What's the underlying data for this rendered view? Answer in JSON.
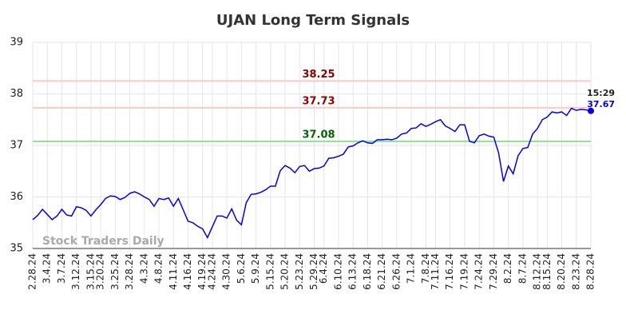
{
  "chart_data": {
    "type": "line",
    "title": "UJAN Long Term Signals",
    "watermark": "Stock Traders Daily",
    "categories": [
      "2.28.24",
      null,
      null,
      "3.4.24",
      null,
      null,
      "3.7.24",
      null,
      null,
      "3.12.24",
      null,
      null,
      "3.15.24",
      null,
      "3.20.24",
      null,
      null,
      "3.25.24",
      null,
      null,
      "3.28.24",
      null,
      null,
      "4.3.24",
      null,
      null,
      "4.8.24",
      null,
      null,
      "4.11.24",
      null,
      null,
      "4.16.24",
      null,
      null,
      "4.19.24",
      null,
      "4.24.24",
      null,
      null,
      "4.30.24",
      null,
      null,
      "5.6.24",
      null,
      null,
      "5.9.24",
      null,
      null,
      "5.15.24",
      null,
      null,
      "5.20.24",
      null,
      null,
      "5.23.24",
      null,
      null,
      "5.29.24",
      null,
      "6.4.24",
      null,
      null,
      "6.10.24",
      null,
      null,
      "6.13.24",
      null,
      null,
      "6.18.24",
      null,
      null,
      "6.21.24",
      null,
      null,
      "6.26.24",
      null,
      null,
      "7.1.24",
      null,
      null,
      "7.8.24",
      null,
      "7.11.24",
      null,
      null,
      "7.16.24",
      null,
      null,
      "7.19.24",
      null,
      null,
      "7.24.24",
      null,
      null,
      "7.29.24",
      null,
      null,
      "8.2.24",
      null,
      null,
      "8.7.24",
      null,
      null,
      "8.12.24",
      null,
      "8.15.24",
      null,
      null,
      "8.20.24",
      null,
      null,
      "8.23.24",
      null,
      null,
      "8.28.24"
    ],
    "values": [
      35.56,
      35.64,
      35.76,
      35.66,
      35.56,
      35.63,
      35.76,
      35.65,
      35.63,
      35.81,
      35.79,
      35.74,
      35.63,
      35.75,
      35.85,
      35.97,
      36.02,
      36.01,
      35.95,
      35.99,
      36.07,
      36.1,
      36.06,
      36.0,
      35.95,
      35.82,
      35.97,
      35.95,
      35.98,
      35.82,
      35.97,
      35.75,
      35.53,
      35.5,
      35.43,
      35.38,
      35.21,
      35.42,
      35.63,
      35.63,
      35.59,
      35.77,
      35.55,
      35.46,
      35.89,
      36.05,
      36.06,
      36.09,
      36.14,
      36.21,
      36.21,
      36.51,
      36.61,
      36.56,
      36.47,
      36.59,
      36.61,
      36.5,
      36.55,
      36.56,
      36.6,
      36.75,
      36.76,
      36.79,
      36.83,
      36.97,
      36.99,
      37.05,
      37.09,
      37.05,
      37.04,
      37.11,
      37.11,
      37.12,
      37.11,
      37.14,
      37.22,
      37.24,
      37.33,
      37.34,
      37.42,
      37.37,
      37.41,
      37.46,
      37.5,
      37.38,
      37.33,
      37.27,
      37.4,
      37.4,
      37.08,
      37.05,
      37.19,
      37.22,
      37.18,
      37.16,
      36.85,
      36.3,
      36.6,
      36.45,
      36.8,
      36.94,
      36.96,
      37.22,
      37.33,
      37.5,
      37.55,
      37.65,
      37.63,
      37.65,
      37.58,
      37.72,
      37.68,
      37.7,
      37.69,
      37.67
    ],
    "color": "#0000ee",
    "last_time": "15:29",
    "levels": [
      {
        "value": 38.25,
        "color": "#ffc8c8",
        "label_color": "#8b0000"
      },
      {
        "value": 37.73,
        "color": "#ffc8c8",
        "label_color": "#8b0000"
      },
      {
        "value": 37.08,
        "color": "#90e090",
        "label_color": "#006400"
      }
    ],
    "ylim": [
      35,
      39
    ],
    "yticks": [
      35,
      36,
      37,
      38,
      39
    ],
    "grid": true
  }
}
